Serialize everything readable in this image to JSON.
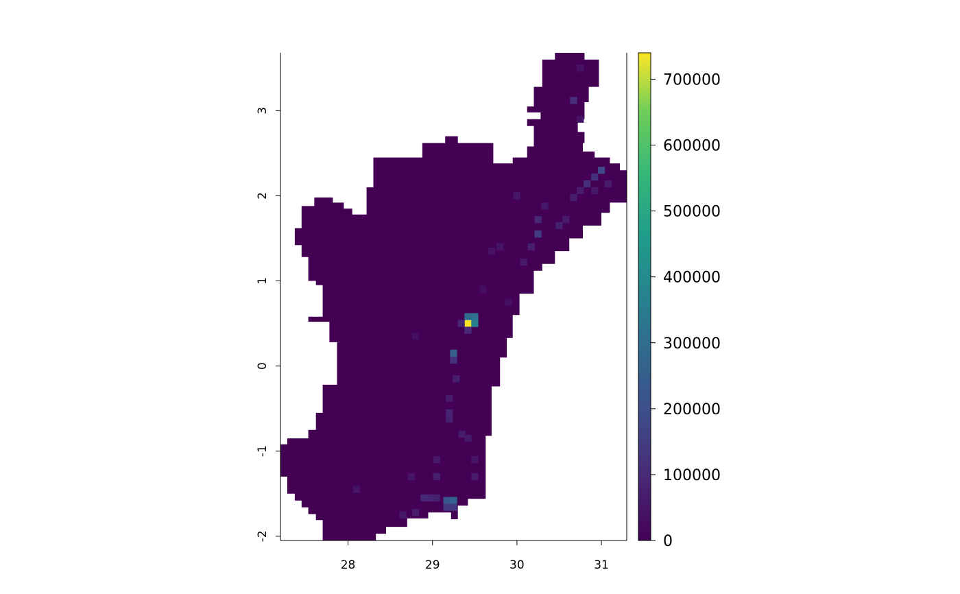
{
  "chart_data": {
    "type": "heatmap",
    "title": "",
    "xlabel": "",
    "ylabel": "",
    "xlim": [
      27.2,
      31.3
    ],
    "ylim": [
      -2.05,
      3.68
    ],
    "cell_size": 0.0833,
    "x_ticks": [
      {
        "value": 28,
        "label": "28"
      },
      {
        "value": 29,
        "label": "29"
      },
      {
        "value": 30,
        "label": "30"
      },
      {
        "value": 31,
        "label": "31"
      }
    ],
    "y_ticks": [
      {
        "value": -2,
        "label": "-2"
      },
      {
        "value": -1,
        "label": "-1"
      },
      {
        "value": 0,
        "label": "0"
      },
      {
        "value": 1,
        "label": "1"
      },
      {
        "value": 2,
        "label": "2"
      },
      {
        "value": 3,
        "label": "3"
      }
    ],
    "colorbar": {
      "palette": "viridis",
      "range": [
        0,
        740000
      ],
      "ticks": [
        {
          "value": 0,
          "label": "0"
        },
        {
          "value": 100000,
          "label": "100000"
        },
        {
          "value": 200000,
          "label": "200000"
        },
        {
          "value": 300000,
          "label": "300000"
        },
        {
          "value": 400000,
          "label": "400000"
        },
        {
          "value": 500000,
          "label": "500000"
        },
        {
          "value": 600000,
          "label": "600000"
        },
        {
          "value": 700000,
          "label": "700000"
        }
      ]
    },
    "region_polygon": [
      [
        28.33,
        -2.05
      ],
      [
        28.33,
        -1.97
      ],
      [
        28.45,
        -1.97
      ],
      [
        28.45,
        -1.89
      ],
      [
        28.7,
        -1.89
      ],
      [
        28.7,
        -1.79
      ],
      [
        28.95,
        -1.79
      ],
      [
        28.95,
        -1.72
      ],
      [
        29.22,
        -1.72
      ],
      [
        29.22,
        -1.8
      ],
      [
        29.3,
        -1.8
      ],
      [
        29.3,
        -1.64
      ],
      [
        29.42,
        -1.64
      ],
      [
        29.42,
        -1.56
      ],
      [
        29.63,
        -1.56
      ],
      [
        29.63,
        -0.82
      ],
      [
        29.7,
        -0.82
      ],
      [
        29.7,
        -0.24
      ],
      [
        29.8,
        -0.24
      ],
      [
        29.8,
        0.1
      ],
      [
        29.88,
        0.1
      ],
      [
        29.88,
        0.33
      ],
      [
        29.95,
        0.33
      ],
      [
        29.95,
        0.6
      ],
      [
        30.03,
        0.6
      ],
      [
        30.03,
        0.85
      ],
      [
        30.2,
        0.85
      ],
      [
        30.2,
        1.12
      ],
      [
        30.3,
        1.12
      ],
      [
        30.3,
        1.2
      ],
      [
        30.45,
        1.2
      ],
      [
        30.45,
        1.35
      ],
      [
        30.62,
        1.35
      ],
      [
        30.62,
        1.5
      ],
      [
        30.78,
        1.5
      ],
      [
        30.78,
        1.65
      ],
      [
        31.0,
        1.65
      ],
      [
        31.0,
        1.8
      ],
      [
        31.1,
        1.8
      ],
      [
        31.1,
        1.92
      ],
      [
        31.3,
        1.92
      ],
      [
        31.3,
        2.3
      ],
      [
        31.22,
        2.3
      ],
      [
        31.22,
        2.38
      ],
      [
        31.1,
        2.38
      ],
      [
        31.1,
        2.45
      ],
      [
        30.92,
        2.45
      ],
      [
        30.92,
        2.52
      ],
      [
        30.78,
        2.52
      ],
      [
        30.78,
        2.62
      ],
      [
        30.8,
        2.62
      ],
      [
        30.8,
        2.75
      ],
      [
        30.72,
        2.75
      ],
      [
        30.72,
        2.9
      ],
      [
        30.8,
        2.9
      ],
      [
        30.8,
        3.1
      ],
      [
        30.85,
        3.1
      ],
      [
        30.85,
        3.28
      ],
      [
        30.97,
        3.28
      ],
      [
        30.97,
        3.6
      ],
      [
        30.8,
        3.6
      ],
      [
        30.8,
        3.68
      ],
      [
        30.45,
        3.68
      ],
      [
        30.45,
        3.6
      ],
      [
        30.3,
        3.6
      ],
      [
        30.3,
        3.28
      ],
      [
        30.2,
        3.28
      ],
      [
        30.2,
        3.05
      ],
      [
        30.12,
        3.05
      ],
      [
        30.12,
        2.98
      ],
      [
        30.28,
        2.98
      ],
      [
        30.28,
        2.9
      ],
      [
        30.12,
        2.9
      ],
      [
        30.12,
        2.82
      ],
      [
        30.2,
        2.82
      ],
      [
        30.2,
        2.58
      ],
      [
        30.12,
        2.58
      ],
      [
        30.12,
        2.45
      ],
      [
        29.95,
        2.45
      ],
      [
        29.95,
        2.38
      ],
      [
        29.72,
        2.38
      ],
      [
        29.72,
        2.62
      ],
      [
        29.3,
        2.62
      ],
      [
        29.3,
        2.7
      ],
      [
        29.15,
        2.7
      ],
      [
        29.15,
        2.62
      ],
      [
        28.88,
        2.62
      ],
      [
        28.88,
        2.45
      ],
      [
        28.3,
        2.45
      ],
      [
        28.3,
        2.1
      ],
      [
        28.22,
        2.1
      ],
      [
        28.22,
        1.78
      ],
      [
        28.05,
        1.78
      ],
      [
        28.05,
        1.85
      ],
      [
        27.95,
        1.85
      ],
      [
        27.95,
        1.92
      ],
      [
        27.82,
        1.92
      ],
      [
        27.82,
        1.98
      ],
      [
        27.6,
        1.98
      ],
      [
        27.6,
        1.88
      ],
      [
        27.45,
        1.88
      ],
      [
        27.45,
        1.62
      ],
      [
        27.37,
        1.62
      ],
      [
        27.37,
        1.42
      ],
      [
        27.45,
        1.42
      ],
      [
        27.45,
        1.28
      ],
      [
        27.53,
        1.28
      ],
      [
        27.53,
        1.0
      ],
      [
        27.62,
        1.0
      ],
      [
        27.62,
        0.95
      ],
      [
        27.7,
        0.95
      ],
      [
        27.7,
        0.58
      ],
      [
        27.53,
        0.58
      ],
      [
        27.53,
        0.52
      ],
      [
        27.78,
        0.52
      ],
      [
        27.78,
        0.28
      ],
      [
        27.87,
        0.28
      ],
      [
        27.87,
        -0.22
      ],
      [
        27.7,
        -0.22
      ],
      [
        27.7,
        -0.55
      ],
      [
        27.62,
        -0.55
      ],
      [
        27.62,
        -0.75
      ],
      [
        27.53,
        -0.75
      ],
      [
        27.53,
        -0.85
      ],
      [
        27.28,
        -0.85
      ],
      [
        27.28,
        -0.92
      ],
      [
        27.2,
        -0.92
      ],
      [
        27.2,
        -1.3
      ],
      [
        27.28,
        -1.3
      ],
      [
        27.28,
        -1.5
      ],
      [
        27.37,
        -1.5
      ],
      [
        27.37,
        -1.58
      ],
      [
        27.45,
        -1.58
      ],
      [
        27.45,
        -1.66
      ],
      [
        27.53,
        -1.66
      ],
      [
        27.53,
        -1.74
      ],
      [
        27.62,
        -1.74
      ],
      [
        27.62,
        -1.81
      ],
      [
        27.7,
        -1.81
      ],
      [
        27.7,
        -2.05
      ]
    ],
    "value_cells": [
      {
        "x": 29.42,
        "y": 0.5,
        "value": 740000
      },
      {
        "x": 29.5,
        "y": 0.5,
        "value": 360000
      },
      {
        "x": 29.42,
        "y": 0.58,
        "value": 290000
      },
      {
        "x": 29.5,
        "y": 0.58,
        "value": 310000
      },
      {
        "x": 29.34,
        "y": 0.5,
        "value": 90000
      },
      {
        "x": 29.42,
        "y": 0.42,
        "value": 100000
      },
      {
        "x": 29.25,
        "y": 0.15,
        "value": 250000
      },
      {
        "x": 29.25,
        "y": 0.07,
        "value": 120000
      },
      {
        "x": 29.17,
        "y": -1.58,
        "value": 220000
      },
      {
        "x": 29.25,
        "y": -1.58,
        "value": 260000
      },
      {
        "x": 29.25,
        "y": -1.66,
        "value": 140000
      },
      {
        "x": 29.17,
        "y": -1.66,
        "value": 140000
      },
      {
        "x": 31.0,
        "y": 2.3,
        "value": 180000
      },
      {
        "x": 30.92,
        "y": 2.22,
        "value": 120000
      },
      {
        "x": 30.83,
        "y": 2.14,
        "value": 110000
      },
      {
        "x": 30.25,
        "y": 1.55,
        "value": 150000
      },
      {
        "x": 30.25,
        "y": 1.72,
        "value": 90000
      },
      {
        "x": 30.67,
        "y": 3.12,
        "value": 110000
      },
      {
        "x": 30.17,
        "y": 1.4,
        "value": 70000
      },
      {
        "x": 30.08,
        "y": 1.22,
        "value": 60000
      },
      {
        "x": 28.9,
        "y": -1.55,
        "value": 90000
      },
      {
        "x": 28.98,
        "y": -1.55,
        "value": 80000
      },
      {
        "x": 29.05,
        "y": -1.55,
        "value": 70000
      },
      {
        "x": 29.05,
        "y": -1.3,
        "value": 70000
      },
      {
        "x": 29.05,
        "y": -1.1,
        "value": 60000
      },
      {
        "x": 29.2,
        "y": -0.55,
        "value": 80000
      },
      {
        "x": 29.2,
        "y": -0.62,
        "value": 75000
      },
      {
        "x": 29.2,
        "y": -0.38,
        "value": 60000
      },
      {
        "x": 29.28,
        "y": -0.15,
        "value": 70000
      },
      {
        "x": 29.35,
        "y": -0.8,
        "value": 65000
      },
      {
        "x": 29.42,
        "y": -0.85,
        "value": 55000
      },
      {
        "x": 29.5,
        "y": -1.3,
        "value": 60000
      },
      {
        "x": 29.5,
        "y": -1.1,
        "value": 50000
      },
      {
        "x": 28.1,
        "y": -1.45,
        "value": 45000
      },
      {
        "x": 28.75,
        "y": -1.3,
        "value": 45000
      },
      {
        "x": 28.65,
        "y": -1.75,
        "value": 50000
      },
      {
        "x": 28.8,
        "y": -1.72,
        "value": 60000
      },
      {
        "x": 30.5,
        "y": 1.65,
        "value": 70000
      },
      {
        "x": 30.58,
        "y": 1.72,
        "value": 60000
      },
      {
        "x": 30.67,
        "y": 1.98,
        "value": 70000
      },
      {
        "x": 30.75,
        "y": 2.06,
        "value": 65000
      },
      {
        "x": 30.92,
        "y": 2.06,
        "value": 55000
      },
      {
        "x": 31.08,
        "y": 2.14,
        "value": 60000
      },
      {
        "x": 30.33,
        "y": 1.88,
        "value": 55000
      },
      {
        "x": 30.0,
        "y": 2.0,
        "value": 50000
      },
      {
        "x": 30.75,
        "y": 2.9,
        "value": 45000
      },
      {
        "x": 30.75,
        "y": 3.5,
        "value": 40000
      },
      {
        "x": 29.8,
        "y": 1.4,
        "value": 45000
      },
      {
        "x": 29.7,
        "y": 1.35,
        "value": 40000
      },
      {
        "x": 28.8,
        "y": 0.35,
        "value": 35000
      },
      {
        "x": 29.9,
        "y": 0.75,
        "value": 35000
      },
      {
        "x": 29.6,
        "y": 0.9,
        "value": 30000
      }
    ]
  }
}
